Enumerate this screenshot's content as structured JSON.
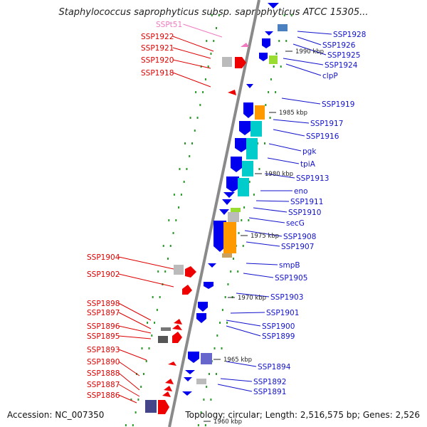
{
  "title": "Staphylococcus saprophyticus subsp. saprophyticus ATCC 15305...",
  "footer": {
    "accession": "Accession: NC_007350",
    "summary": "Topology: circular; Length: 2,516,575 bp; Genes: 2,526"
  },
  "colors": {
    "backbone": "#8a8a8a",
    "label_left": "#dd0000",
    "label_right": "#1111cc",
    "label_rna": "#f07ac0",
    "forward_gene": "#ee0000",
    "reverse_gene": "#0000ee",
    "tick": "#2a9a2a"
  },
  "scale_marks": [
    "1990 kbp",
    "1985 kbp",
    "1980 kbp",
    "1975 kbp",
    "1970 kbp",
    "1965 kbp",
    "1960 kbp"
  ],
  "left_labels": [
    "SSPt51",
    "SSP1922",
    "SSP1921",
    "SSP1920",
    "SSP1918",
    "SSP1904",
    "SSP1902",
    "SSP1898",
    "SSP1897",
    "SSP1896",
    "SSP1895",
    "SSP1893",
    "SSP1890",
    "SSP1888",
    "SSP1887",
    "SSP1886"
  ],
  "right_labels": [
    "SSP1928",
    "SSP1926",
    "SSP1925",
    "SSP1924",
    "clpP",
    "SSP1919",
    "SSP1917",
    "SSP1916",
    "pgk",
    "tpiA",
    "SSP1913",
    "eno",
    "SSP1911",
    "SSP1910",
    "secG",
    "SSP1908",
    "SSP1907",
    "smpB",
    "SSP1905",
    "SSP1903",
    "SSP1901",
    "SSP1900",
    "SSP1899",
    "SSP1894",
    "SSP1892",
    "SSP1891"
  ]
}
